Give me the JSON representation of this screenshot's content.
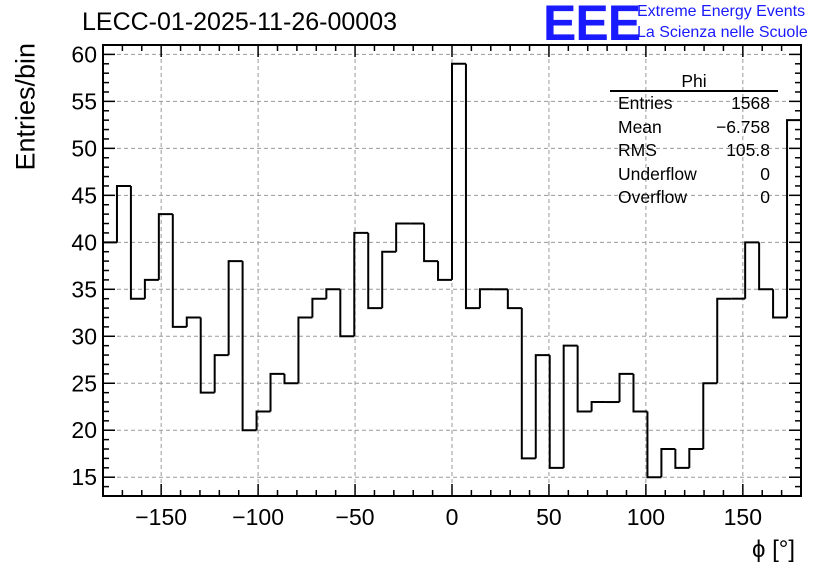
{
  "title": "LECC-01-2025-11-26-00003",
  "logo": {
    "mark": "EEE",
    "line1": "Extreme Energy Events",
    "line2": "La Scienza nelle Scuole",
    "color": "#1a1aff"
  },
  "stats": {
    "name": "Phi",
    "rows": [
      {
        "label": "Entries",
        "value": "1568"
      },
      {
        "label": "Mean",
        "value": "−6.758"
      },
      {
        "label": "RMS",
        "value": "105.8"
      },
      {
        "label": "Underflow",
        "value": "0"
      },
      {
        "label": "Overflow",
        "value": "0"
      }
    ]
  },
  "chart_data": {
    "type": "histogram",
    "title": "LECC-01-2025-11-26-00003",
    "xlabel": "ϕ [°]",
    "ylabel": "Entries/bin",
    "xlim": [
      -180,
      180
    ],
    "ylim": [
      13,
      61
    ],
    "bin_width": 7.2,
    "bin_edges_start": -180,
    "values": [
      40,
      46,
      34,
      36,
      43,
      31,
      32,
      24,
      28,
      38,
      20,
      22,
      26,
      25,
      32,
      34,
      35,
      30,
      41,
      33,
      39,
      42,
      42,
      38,
      36,
      59,
      33,
      35,
      35,
      33,
      17,
      28,
      16,
      29,
      22,
      23,
      23,
      26,
      22,
      15,
      18,
      16,
      18,
      25,
      34,
      34,
      40,
      35,
      32,
      53
    ],
    "x_ticks": [
      -150,
      -100,
      -50,
      0,
      50,
      100,
      150
    ],
    "x_tick_labels": [
      "−150",
      "−100",
      "−50",
      "0",
      "50",
      "100",
      "150"
    ],
    "y_ticks": [
      15,
      20,
      25,
      30,
      35,
      40,
      45,
      50,
      55,
      60
    ],
    "y_tick_labels": [
      "15",
      "20",
      "25",
      "30",
      "35",
      "40",
      "45",
      "50",
      "55",
      "60"
    ],
    "grid": true
  }
}
